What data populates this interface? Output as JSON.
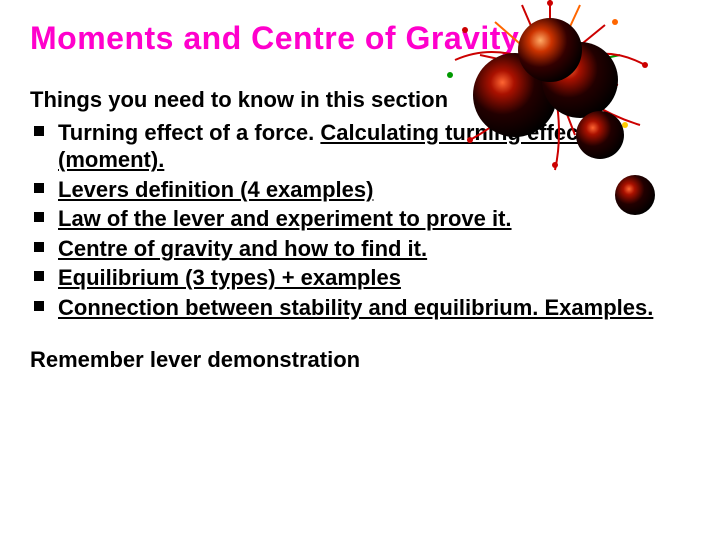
{
  "colors": {
    "pink": "#ff00cc",
    "black": "#000000",
    "white": "#ffffff",
    "sphere_dark": "#1a0000",
    "sphere_rim": "#660000",
    "sphere_glow": "#ff3300",
    "spark_red": "#cc0000",
    "spark_orange": "#ff6600",
    "spark_yellow": "#ffcc00",
    "spark_green": "#009900"
  },
  "typography": {
    "title_fontsize": 32,
    "subtitle_fontsize": 22,
    "bullet_fontsize": 22,
    "footer_fontsize": 22,
    "bullet_square_size": 10
  },
  "title": "Moments and Centre of Gravity",
  "subtitle": "Things you need to know in this section",
  "bullets": [
    {
      "plain": "Turning effect of a force. ",
      "underlined": "Calculating turning effect (moment)."
    },
    {
      "plain": "",
      "underlined": "Levers definition (4 examples)"
    },
    {
      "plain": "",
      "underlined": "Law of the lever and experiment to prove it."
    },
    {
      "plain": "",
      "underlined": "Centre of gravity and how to find it."
    },
    {
      "plain": "",
      "underlined": "Equilibrium (3 types) + examples"
    },
    {
      "plain": "",
      "underlined": "Connection between stability and equilibrium. Examples."
    }
  ],
  "footer": "Remember lever demonstration"
}
